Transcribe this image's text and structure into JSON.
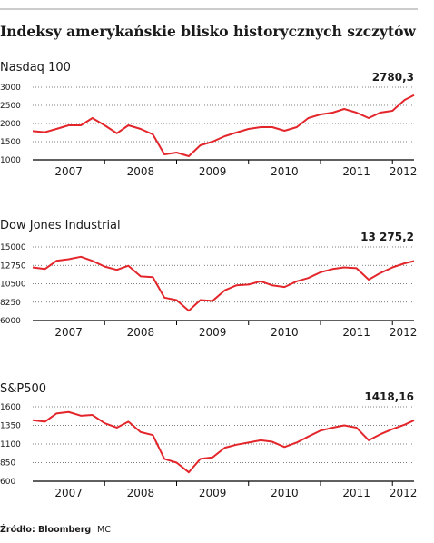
{
  "header": {
    "title": "Indeksy amerykańskie blisko historycznych szczytów"
  },
  "footer": {
    "source": "Źródło: Bloomberg",
    "credit": "MC"
  },
  "chart_data": [
    {
      "type": "line",
      "title": "Nasdaq 100",
      "line_color": "#e3262b",
      "x": [
        2007.0,
        2007.17,
        2007.33,
        2007.5,
        2007.67,
        2007.83,
        2008.0,
        2008.17,
        2008.33,
        2008.5,
        2008.67,
        2008.83,
        2009.0,
        2009.17,
        2009.33,
        2009.5,
        2009.67,
        2009.83,
        2010.0,
        2010.17,
        2010.33,
        2010.5,
        2010.67,
        2010.83,
        2011.0,
        2011.17,
        2011.33,
        2011.5,
        2011.67,
        2011.83,
        2012.0,
        2012.17,
        2012.3
      ],
      "values": [
        1790,
        1760,
        1850,
        1950,
        1950,
        2150,
        1950,
        1730,
        1950,
        1850,
        1700,
        1150,
        1200,
        1100,
        1400,
        1500,
        1650,
        1750,
        1850,
        1900,
        1900,
        1800,
        1900,
        2150,
        2250,
        2300,
        2400,
        2300,
        2150,
        2300,
        2350,
        2650,
        2780.3
      ],
      "value_labels": [
        null,
        null,
        null,
        null,
        null,
        null,
        null,
        null,
        null,
        null,
        null,
        null,
        null,
        null,
        null,
        null,
        null,
        null,
        null,
        null,
        null,
        null,
        null,
        null,
        null,
        null,
        null,
        null,
        null,
        null,
        null,
        null,
        "2780,3"
      ],
      "xlim": [
        2007.0,
        2012.3
      ],
      "xticks": [
        2007,
        2008,
        2009,
        2010,
        2011,
        2012
      ],
      "ylim": [
        1000,
        3000
      ],
      "yticks": [
        1000,
        1500,
        2000,
        2500,
        3000
      ],
      "grid": true
    },
    {
      "type": "line",
      "title": "Dow Jones Industrial",
      "line_color": "#e3262b",
      "x": [
        2007.0,
        2007.17,
        2007.33,
        2007.5,
        2007.67,
        2007.83,
        2008.0,
        2008.17,
        2008.33,
        2008.5,
        2008.67,
        2008.83,
        2009.0,
        2009.17,
        2009.33,
        2009.5,
        2009.67,
        2009.83,
        2010.0,
        2010.17,
        2010.33,
        2010.5,
        2010.67,
        2010.83,
        2011.0,
        2011.17,
        2011.33,
        2011.5,
        2011.67,
        2011.83,
        2012.0,
        2012.17,
        2012.3
      ],
      "values": [
        12500,
        12300,
        13300,
        13500,
        13800,
        13300,
        12600,
        12200,
        12700,
        11400,
        11300,
        8800,
        8500,
        7200,
        8500,
        8400,
        9700,
        10300,
        10400,
        10800,
        10300,
        10100,
        10800,
        11200,
        11900,
        12300,
        12500,
        12400,
        11000,
        11800,
        12500,
        13000,
        13275.2
      ],
      "value_labels": [
        null,
        null,
        null,
        null,
        null,
        null,
        null,
        null,
        null,
        null,
        null,
        null,
        null,
        null,
        null,
        null,
        null,
        null,
        null,
        null,
        null,
        null,
        null,
        null,
        null,
        null,
        null,
        null,
        null,
        null,
        null,
        null,
        "13 275,2"
      ],
      "xlim": [
        2007.0,
        2012.3
      ],
      "xticks": [
        2007,
        2008,
        2009,
        2010,
        2011,
        2012
      ],
      "ylim": [
        6000,
        15000
      ],
      "yticks": [
        6000,
        8250,
        10500,
        12750,
        15000
      ],
      "grid": true
    },
    {
      "type": "line",
      "title": "S&P500",
      "line_color": "#e3262b",
      "x": [
        2007.0,
        2007.17,
        2007.33,
        2007.5,
        2007.67,
        2007.83,
        2008.0,
        2008.17,
        2008.33,
        2008.5,
        2008.67,
        2008.83,
        2009.0,
        2009.17,
        2009.33,
        2009.5,
        2009.67,
        2009.83,
        2010.0,
        2010.17,
        2010.33,
        2010.5,
        2010.67,
        2010.83,
        2011.0,
        2011.17,
        2011.33,
        2011.5,
        2011.67,
        2011.83,
        2012.0,
        2012.17,
        2012.3
      ],
      "values": [
        1420,
        1400,
        1510,
        1530,
        1480,
        1490,
        1380,
        1320,
        1400,
        1260,
        1220,
        900,
        850,
        720,
        900,
        920,
        1050,
        1090,
        1120,
        1150,
        1130,
        1060,
        1120,
        1200,
        1280,
        1320,
        1350,
        1320,
        1150,
        1230,
        1300,
        1360,
        1418.16
      ],
      "value_labels": [
        null,
        null,
        null,
        null,
        null,
        null,
        null,
        null,
        null,
        null,
        null,
        null,
        null,
        null,
        null,
        null,
        null,
        null,
        null,
        null,
        null,
        null,
        null,
        null,
        null,
        null,
        null,
        null,
        null,
        null,
        null,
        null,
        "1418,16"
      ],
      "xlim": [
        2007.0,
        2012.3
      ],
      "xticks": [
        2007,
        2008,
        2009,
        2010,
        2011,
        2012
      ],
      "ylim": [
        600,
        1600
      ],
      "yticks": [
        600,
        850,
        1100,
        1350,
        1600
      ],
      "grid": true
    }
  ]
}
